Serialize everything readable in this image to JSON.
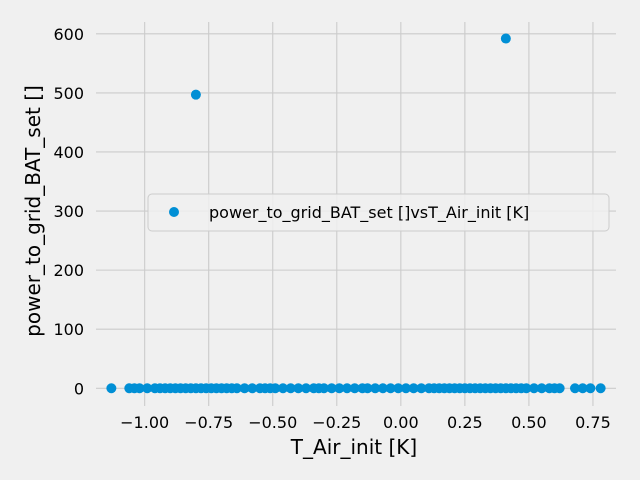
{
  "chart_data": {
    "type": "scatter",
    "title": "",
    "xlabel": "T_Air_init [K]",
    "ylabel": "power_to_grid_BAT_set []",
    "xlim": [
      -1.19,
      0.84
    ],
    "ylim": [
      -30,
      620
    ],
    "xticks": [
      -1.0,
      -0.75,
      -0.5,
      -0.25,
      0.0,
      0.25,
      0.5,
      0.75
    ],
    "xtick_labels": [
      "−1.00",
      "−0.75",
      "−0.50",
      "−0.25",
      "0.00",
      "0.25",
      "0.50",
      "0.75"
    ],
    "yticks": [
      0,
      100,
      200,
      300,
      400,
      500,
      600
    ],
    "ytick_labels": [
      "0",
      "100",
      "200",
      "300",
      "400",
      "500",
      "600"
    ],
    "grid": true,
    "legend_position": "center-right",
    "series": [
      {
        "name": "power_to_grid_BAT_set []vsT_Air_init [K]",
        "color": "#008fd5",
        "x": [
          -1.13,
          -1.06,
          -1.04,
          -1.02,
          -0.99,
          -0.96,
          -0.94,
          -0.92,
          -0.9,
          -0.88,
          -0.86,
          -0.84,
          -0.82,
          -0.8,
          -0.78,
          -0.76,
          -0.74,
          -0.72,
          -0.7,
          -0.68,
          -0.66,
          -0.64,
          -0.61,
          -0.58,
          -0.55,
          -0.53,
          -0.51,
          -0.49,
          -0.46,
          -0.43,
          -0.4,
          -0.37,
          -0.34,
          -0.32,
          -0.3,
          -0.27,
          -0.24,
          -0.21,
          -0.18,
          -0.15,
          -0.13,
          -0.1,
          -0.07,
          -0.04,
          -0.01,
          0.02,
          0.05,
          0.08,
          0.11,
          0.13,
          0.15,
          0.17,
          0.19,
          0.21,
          0.23,
          0.25,
          0.27,
          0.29,
          0.31,
          0.33,
          0.35,
          0.37,
          0.39,
          0.41,
          0.43,
          0.45,
          0.47,
          0.49,
          0.52,
          0.55,
          0.58,
          0.6,
          0.62,
          0.68,
          0.71,
          0.74,
          0.78,
          -0.8,
          0.41
        ],
        "y": [
          0,
          0,
          0,
          0,
          0,
          0,
          0,
          0,
          0,
          0,
          0,
          0,
          0,
          0,
          0,
          0,
          0,
          0,
          0,
          0,
          0,
          0,
          0,
          0,
          0,
          0,
          0,
          0,
          0,
          0,
          0,
          0,
          0,
          0,
          0,
          0,
          0,
          0,
          0,
          0,
          0,
          0,
          0,
          0,
          0,
          0,
          0,
          0,
          0,
          0,
          0,
          0,
          0,
          0,
          0,
          0,
          0,
          0,
          0,
          0,
          0,
          0,
          0,
          0,
          0,
          0,
          0,
          0,
          0,
          0,
          0,
          0,
          0,
          0,
          0,
          0,
          0,
          497,
          592
        ]
      }
    ]
  }
}
